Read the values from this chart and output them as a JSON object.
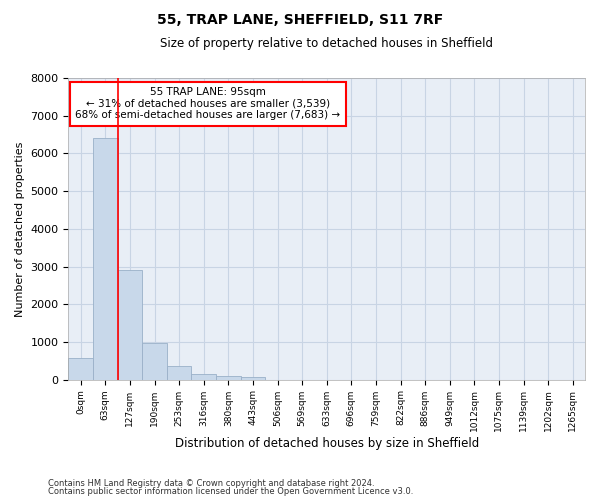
{
  "title_line1": "55, TRAP LANE, SHEFFIELD, S11 7RF",
  "title_line2": "Size of property relative to detached houses in Sheffield",
  "xlabel": "Distribution of detached houses by size in Sheffield",
  "ylabel": "Number of detached properties",
  "bar_labels": [
    "0sqm",
    "63sqm",
    "127sqm",
    "190sqm",
    "253sqm",
    "316sqm",
    "380sqm",
    "443sqm",
    "506sqm",
    "569sqm",
    "633sqm",
    "696sqm",
    "759sqm",
    "822sqm",
    "886sqm",
    "949sqm",
    "1012sqm",
    "1075sqm",
    "1139sqm",
    "1202sqm",
    "1265sqm"
  ],
  "bar_values": [
    560,
    6400,
    2920,
    970,
    370,
    160,
    100,
    60,
    0,
    0,
    0,
    0,
    0,
    0,
    0,
    0,
    0,
    0,
    0,
    0,
    0
  ],
  "bar_color": "#c8d8ea",
  "bar_edge_color": "#9ab0c8",
  "annotation_text_line1": "55 TRAP LANE: 95sqm",
  "annotation_text_line2": "← 31% of detached houses are smaller (3,539)",
  "annotation_text_line3": "68% of semi-detached houses are larger (7,683) →",
  "grid_color": "#c8d4e4",
  "bg_color": "#e8eef6",
  "footer_line1": "Contains HM Land Registry data © Crown copyright and database right 2024.",
  "footer_line2": "Contains public sector information licensed under the Open Government Licence v3.0.",
  "ylim": [
    0,
    8000
  ],
  "yticks": [
    0,
    1000,
    2000,
    3000,
    4000,
    5000,
    6000,
    7000,
    8000
  ]
}
